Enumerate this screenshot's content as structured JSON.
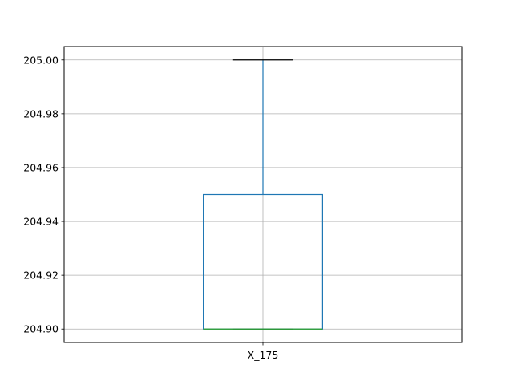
{
  "chart_data": {
    "type": "box",
    "categories": [
      "X_175"
    ],
    "boxes": [
      {
        "name": "X_175",
        "whisker_low": 204.9,
        "q1": 204.9,
        "median": 204.9,
        "q3": 204.95,
        "whisker_high": 205.0
      }
    ],
    "ylim": [
      204.895,
      205.005
    ],
    "yticks": [
      204.9,
      204.92,
      204.94,
      204.96,
      204.98,
      205.0
    ],
    "ytick_labels": [
      "204.90",
      "204.92",
      "204.94",
      "204.96",
      "204.98",
      "205.00"
    ],
    "grid": true,
    "colors": {
      "box": "#1f77b4",
      "median": "#2ca02c",
      "cap": "#000000",
      "grid": "#b0b0b0"
    }
  }
}
